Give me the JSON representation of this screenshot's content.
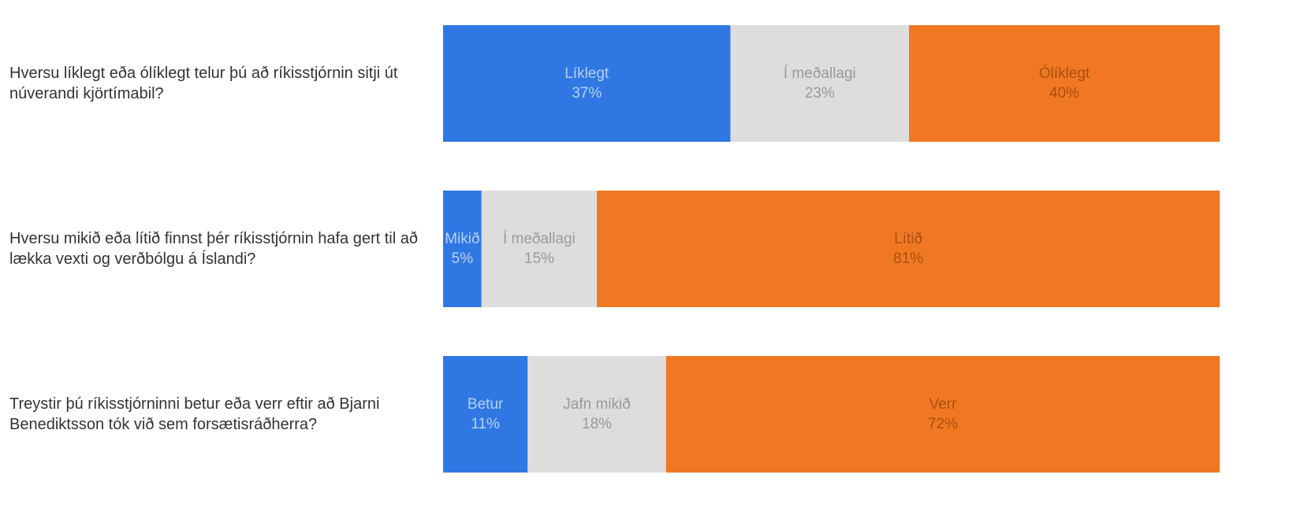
{
  "chart_data": {
    "type": "stacked-bar",
    "categories": [
      "Hversu líklegt eða ólíklegt telur þú að ríkisstjórnin sitji út núverandi kjörtímabil?",
      "Hversu mikið eða lítið finnst þér ríkisstjórnin hafa gert til að lækka vexti og verðbólgu á Íslandi?",
      "Treystir þú ríkisstjórninni betur eða verr eftir að Bjarni Benediktsson tók við sem forsætisráðherra?"
    ],
    "series": [
      {
        "color": "#2f78e4",
        "label_color": "#b7d0f6",
        "labels": [
          "Líklegt",
          "Mikið",
          "Betur"
        ],
        "values": [
          37,
          5,
          11
        ],
        "value_labels": [
          "37%",
          "5%",
          "11%"
        ]
      },
      {
        "color": "#dddddd",
        "label_color": "#9a9a9a",
        "labels": [
          "Í meðallagi",
          "Í meðallagi",
          "Jafn mikið"
        ],
        "values": [
          23,
          15,
          18
        ],
        "value_labels": [
          "23%",
          "15%",
          "18%"
        ]
      },
      {
        "color": "#f07822",
        "label_color": "#a9500f",
        "labels": [
          "Ólíklegt",
          "Lítið",
          "Verr"
        ],
        "values": [
          40,
          81,
          72
        ],
        "value_labels": [
          "40%",
          "81%",
          "72%"
        ]
      }
    ]
  }
}
